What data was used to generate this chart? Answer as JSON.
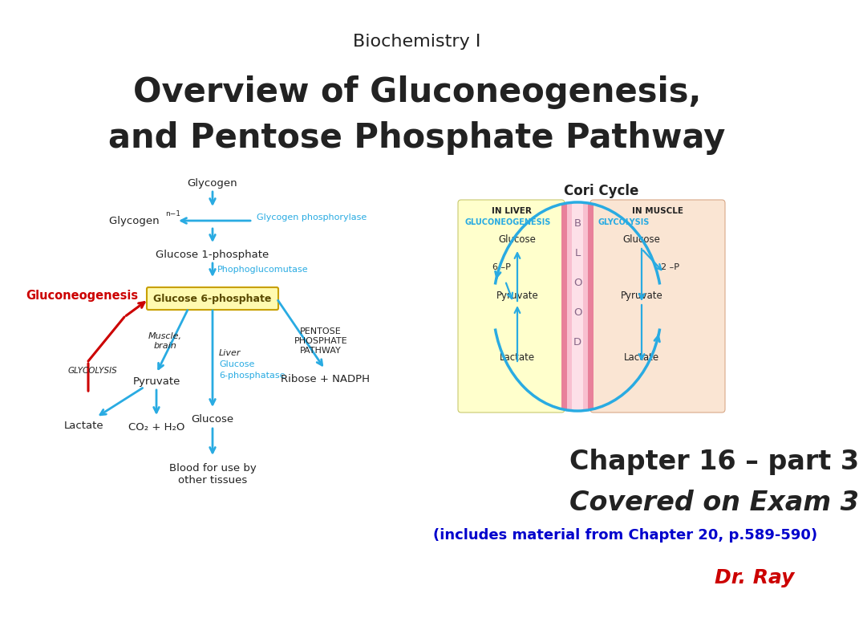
{
  "title_line1": "Biochemistry I",
  "title_line2": "Overview of Gluconeogenesis,",
  "title_line3": "and Pentose Phosphate Pathway",
  "bg_color": "#ffffff",
  "arrow_color": "#29ABE2",
  "red_color": "#CC0000",
  "blue_text": "#0000CC",
  "cyan_text": "#29ABE2",
  "dark_text": "#222222",
  "chapter_text": "Chapter 16 – part 3",
  "covered_text": "Covered on Exam 3",
  "includes_text": "(includes material from Chapter 20, p.589-590)",
  "drray_text": "Dr. Ray",
  "gluconeogenesis_label": "Gluconeogenesis",
  "cori_title": "Cori Cycle",
  "in_liver": "IN LIVER",
  "in_muscle": "IN MUSCLE",
  "gluconeo_label": "GLUCONEOGENESIS",
  "glycolysis_label": "GLYCOLYSIS"
}
